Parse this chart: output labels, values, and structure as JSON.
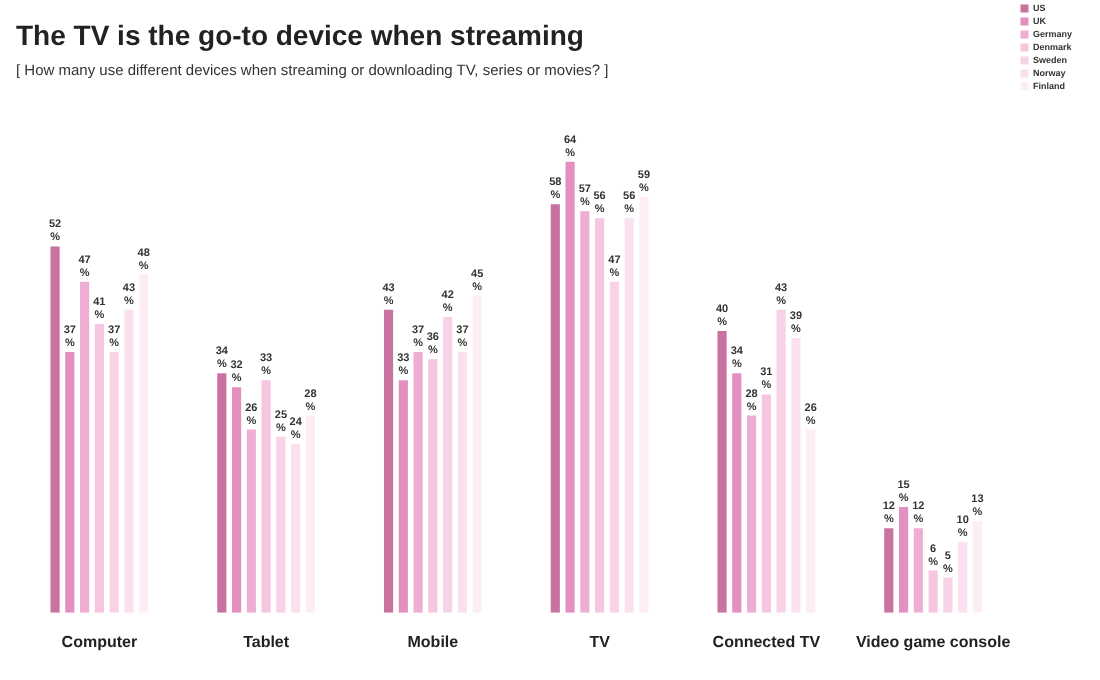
{
  "chart_data": {
    "type": "bar",
    "title": "The TV is the go-to device when streaming",
    "subtitle": "[ How many use different devices when streaming or downloading TV, series or movies? ]",
    "categories": [
      "Computer",
      "Tablet",
      "Mobile",
      "TV",
      "Connected TV",
      "Video game console"
    ],
    "series": [
      {
        "name": "US",
        "color": "#c8739f",
        "values": [
          52,
          34,
          43,
          58,
          40,
          12
        ],
        "value_labels": [
          "52 %",
          "34 %",
          "43 %",
          "58 %",
          "40 %",
          "12 %"
        ]
      },
      {
        "name": "UK",
        "color": "#e38fbf",
        "values": [
          37,
          32,
          33,
          64,
          34,
          15
        ],
        "value_labels": [
          "37 %",
          "32 %",
          "33 %",
          "64 %",
          "34 %",
          "15 %"
        ]
      },
      {
        "name": "Germany",
        "color": "#eeaed3",
        "values": [
          47,
          26,
          37,
          57,
          28,
          12
        ],
        "value_labels": [
          "47 %",
          "26 %",
          "37 %",
          "57 %",
          "28 %",
          "12 %"
        ]
      },
      {
        "name": "Denmark",
        "color": "#f6c5e0",
        "values": [
          41,
          33,
          36,
          56,
          31,
          6
        ],
        "value_labels": [
          "41 %",
          "33 %",
          "36 %",
          "56 %",
          "31 %",
          "6 %"
        ]
      },
      {
        "name": "Sweden",
        "color": "#f8d3e8",
        "values": [
          37,
          25,
          42,
          47,
          43,
          5
        ],
        "value_labels": [
          "37 %",
          "25 %",
          "42 %",
          "47 %",
          "43 %",
          "5 %"
        ]
      },
      {
        "name": "Norway",
        "color": "#fbe0ef",
        "values": [
          43,
          24,
          37,
          56,
          39,
          10
        ],
        "value_labels": [
          "43 %",
          "24 %",
          "37 %",
          "56 %",
          "39 %",
          "10 %"
        ]
      },
      {
        "name": "Finland",
        "color": "#fdeef6",
        "values": [
          48,
          28,
          45,
          59,
          26,
          13
        ],
        "value_labels": [
          "48 %",
          "28 %",
          "45 %",
          "59 %",
          "26 %",
          "13 %"
        ]
      }
    ],
    "legend": "top right",
    "grid": false,
    "tick_labels": "x"
  }
}
